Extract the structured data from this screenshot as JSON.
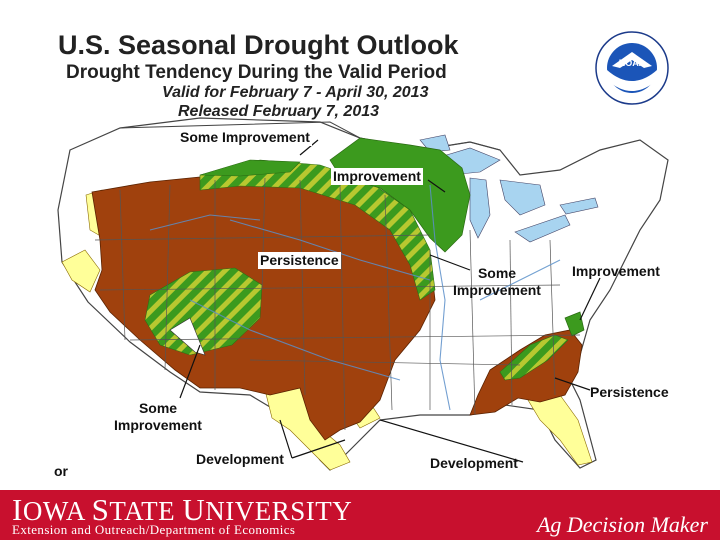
{
  "header": {
    "title": "U.S. Seasonal Drought Outlook",
    "subtitle": "Drought Tendency During the Valid Period",
    "valid": "Valid for February 7 - April 30, 2013",
    "released": "Released February 7, 2013"
  },
  "logo": {
    "name": "noaa-logo-icon",
    "text": "NOAA"
  },
  "map_labels": {
    "some_improvement_north": "Some Improvement",
    "improvement_north": "Improvement",
    "persistence_central": "Persistence",
    "some_improvement_east_1": "Some",
    "some_improvement_east_2": "Improvement",
    "improvement_east": "Improvement",
    "persistence_southeast": "Persistence",
    "some_improvement_sw_1": "Some",
    "some_improvement_sw_2": "Improvement",
    "development_texas": "Development",
    "development_gulf": "Development",
    "cut_text": "or"
  },
  "colors": {
    "persistence": "#a0410d",
    "improvement": "#3c9a1e",
    "development": "#ffff99",
    "stripe": "#b8c830",
    "water": "#a8d4f0",
    "footer": "#c8102e"
  },
  "footer": {
    "university_prefix": "I",
    "university_rest": "OWA ",
    "university_s": "S",
    "university_tate": "TATE ",
    "university_u": "U",
    "university_niv": "NIVERSITY",
    "department": "Extension and Outreach/Department of Economics",
    "brand": "Ag Decision Maker"
  }
}
